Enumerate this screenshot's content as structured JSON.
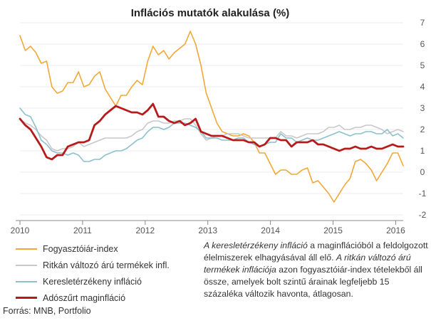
{
  "chart_data": {
    "type": "line",
    "title": "Inflációs mutatók alakulása (%)",
    "x_ticks": [
      "2010",
      "2011",
      "2012",
      "2013",
      "2014",
      "2015",
      "2016"
    ],
    "x_range": [
      2010.0,
      2016.12
    ],
    "y_ticks": [
      "7",
      "6",
      "5",
      "4",
      "3",
      "2",
      "1",
      "0",
      "-1",
      "-2"
    ],
    "y_range": [
      -2,
      7
    ],
    "axis_side": "right",
    "series": [
      {
        "name": "Fogyasztóiár-index",
        "color": "#f2a737",
        "width": 1.6,
        "values": [
          6.4,
          5.7,
          5.9,
          5.6,
          5.1,
          5.2,
          4.0,
          3.7,
          3.8,
          4.2,
          4.2,
          4.7,
          4.0,
          4.1,
          4.5,
          4.7,
          3.9,
          3.5,
          3.1,
          3.6,
          3.6,
          4.0,
          4.3,
          4.1,
          5.2,
          5.9,
          5.5,
          5.7,
          5.3,
          5.6,
          5.8,
          6.0,
          6.6,
          6.0,
          5.0,
          3.7,
          3.0,
          2.3,
          1.9,
          1.8,
          1.7,
          1.7,
          1.8,
          1.7,
          1.4,
          0.9,
          0.9,
          0.4,
          -0.1,
          0.1,
          0.1,
          -0.1,
          -0.1,
          0.1,
          0.2,
          -0.5,
          -0.4,
          -0.7,
          -1.0,
          -1.4,
          -1.0,
          -0.6,
          -0.3,
          0.5,
          0.6,
          0.4,
          0.1,
          -0.4,
          0.0,
          0.4,
          0.9,
          0.9,
          0.3
        ]
      },
      {
        "name": "Ritkán változó árú termékek infl.",
        "color": "#c8c8c8",
        "width": 1.6,
        "values": [
          2.5,
          2.3,
          2.2,
          2.0,
          1.7,
          1.5,
          1.1,
          1.0,
          1.1,
          1.1,
          1.2,
          1.4,
          1.2,
          1.3,
          1.4,
          1.5,
          1.6,
          1.6,
          1.6,
          1.6,
          1.6,
          1.7,
          1.9,
          2.0,
          2.3,
          2.4,
          2.4,
          2.3,
          2.3,
          2.4,
          2.4,
          2.5,
          2.5,
          2.2,
          1.8,
          1.5,
          1.6,
          1.7,
          1.7,
          1.8,
          1.8,
          1.8,
          1.7,
          1.6,
          1.6,
          1.6,
          1.6,
          1.6,
          1.6,
          1.9,
          1.7,
          1.7,
          1.6,
          1.7,
          1.8,
          1.8,
          1.8,
          1.9,
          2.1,
          2.1,
          2.2,
          2.0,
          2.0,
          2.1,
          2.1,
          2.2,
          2.2,
          2.1,
          2.0,
          1.8,
          1.9,
          2.0,
          1.9
        ]
      },
      {
        "name": "Keresletérzékeny infláció",
        "color": "#8cc0cc",
        "width": 1.6,
        "values": [
          3.0,
          2.7,
          2.6,
          2.1,
          1.5,
          1.3,
          1.0,
          0.9,
          0.9,
          0.8,
          0.9,
          0.8,
          0.5,
          0.5,
          0.6,
          0.6,
          0.8,
          0.9,
          1.0,
          1.0,
          1.1,
          1.3,
          1.5,
          1.6,
          1.9,
          2.1,
          2.1,
          2.0,
          2.1,
          2.3,
          2.3,
          2.3,
          2.2,
          2.1,
          1.9,
          1.6,
          1.6,
          1.6,
          1.5,
          1.5,
          1.5,
          1.6,
          1.6,
          1.4,
          1.3,
          1.2,
          1.3,
          1.4,
          1.4,
          1.8,
          1.6,
          1.6,
          1.4,
          1.5,
          1.6,
          1.5,
          1.5,
          1.6,
          1.7,
          1.8,
          1.9,
          1.8,
          1.7,
          1.8,
          1.8,
          1.9,
          1.9,
          1.8,
          1.8,
          2.0,
          1.7,
          1.8,
          1.6
        ]
      },
      {
        "name": "Adószűrt maginfláció",
        "color": "#b71a1a",
        "width": 2.8,
        "values": [
          2.5,
          2.2,
          2.0,
          1.6,
          1.2,
          0.7,
          0.6,
          0.8,
          0.8,
          1.2,
          1.3,
          1.4,
          1.4,
          1.5,
          2.2,
          2.4,
          2.7,
          2.9,
          3.1,
          3.0,
          2.9,
          2.8,
          2.8,
          2.7,
          2.9,
          3.2,
          2.6,
          2.6,
          2.4,
          2.3,
          2.4,
          2.2,
          2.3,
          2.5,
          1.9,
          1.8,
          1.7,
          1.7,
          1.7,
          1.6,
          1.5,
          1.5,
          1.5,
          1.4,
          1.4,
          1.2,
          1.3,
          1.6,
          1.6,
          1.5,
          1.5,
          1.2,
          1.4,
          1.4,
          1.4,
          1.5,
          1.3,
          1.3,
          1.2,
          1.1,
          1.0,
          1.1,
          1.1,
          1.2,
          1.1,
          1.1,
          1.2,
          1.1,
          1.1,
          1.2,
          1.3,
          1.2,
          1.2
        ]
      }
    ]
  },
  "note": {
    "line1_em": "A keresletérzékeny infláció",
    "line1_rest": " a maginflációból a feldolgozott élelmiszerek elhagyásával áll elő.",
    "line2_em": "A ritkán változó árú termékek inflációja",
    "line2_rest": " azon fogyasztóiár-index tételekből áll össze, amelyek bolt szintű árainak legfeljebb 15 százaléka változik havonta, átlagosan."
  },
  "source": "Forrás: MNB, Portfolio"
}
